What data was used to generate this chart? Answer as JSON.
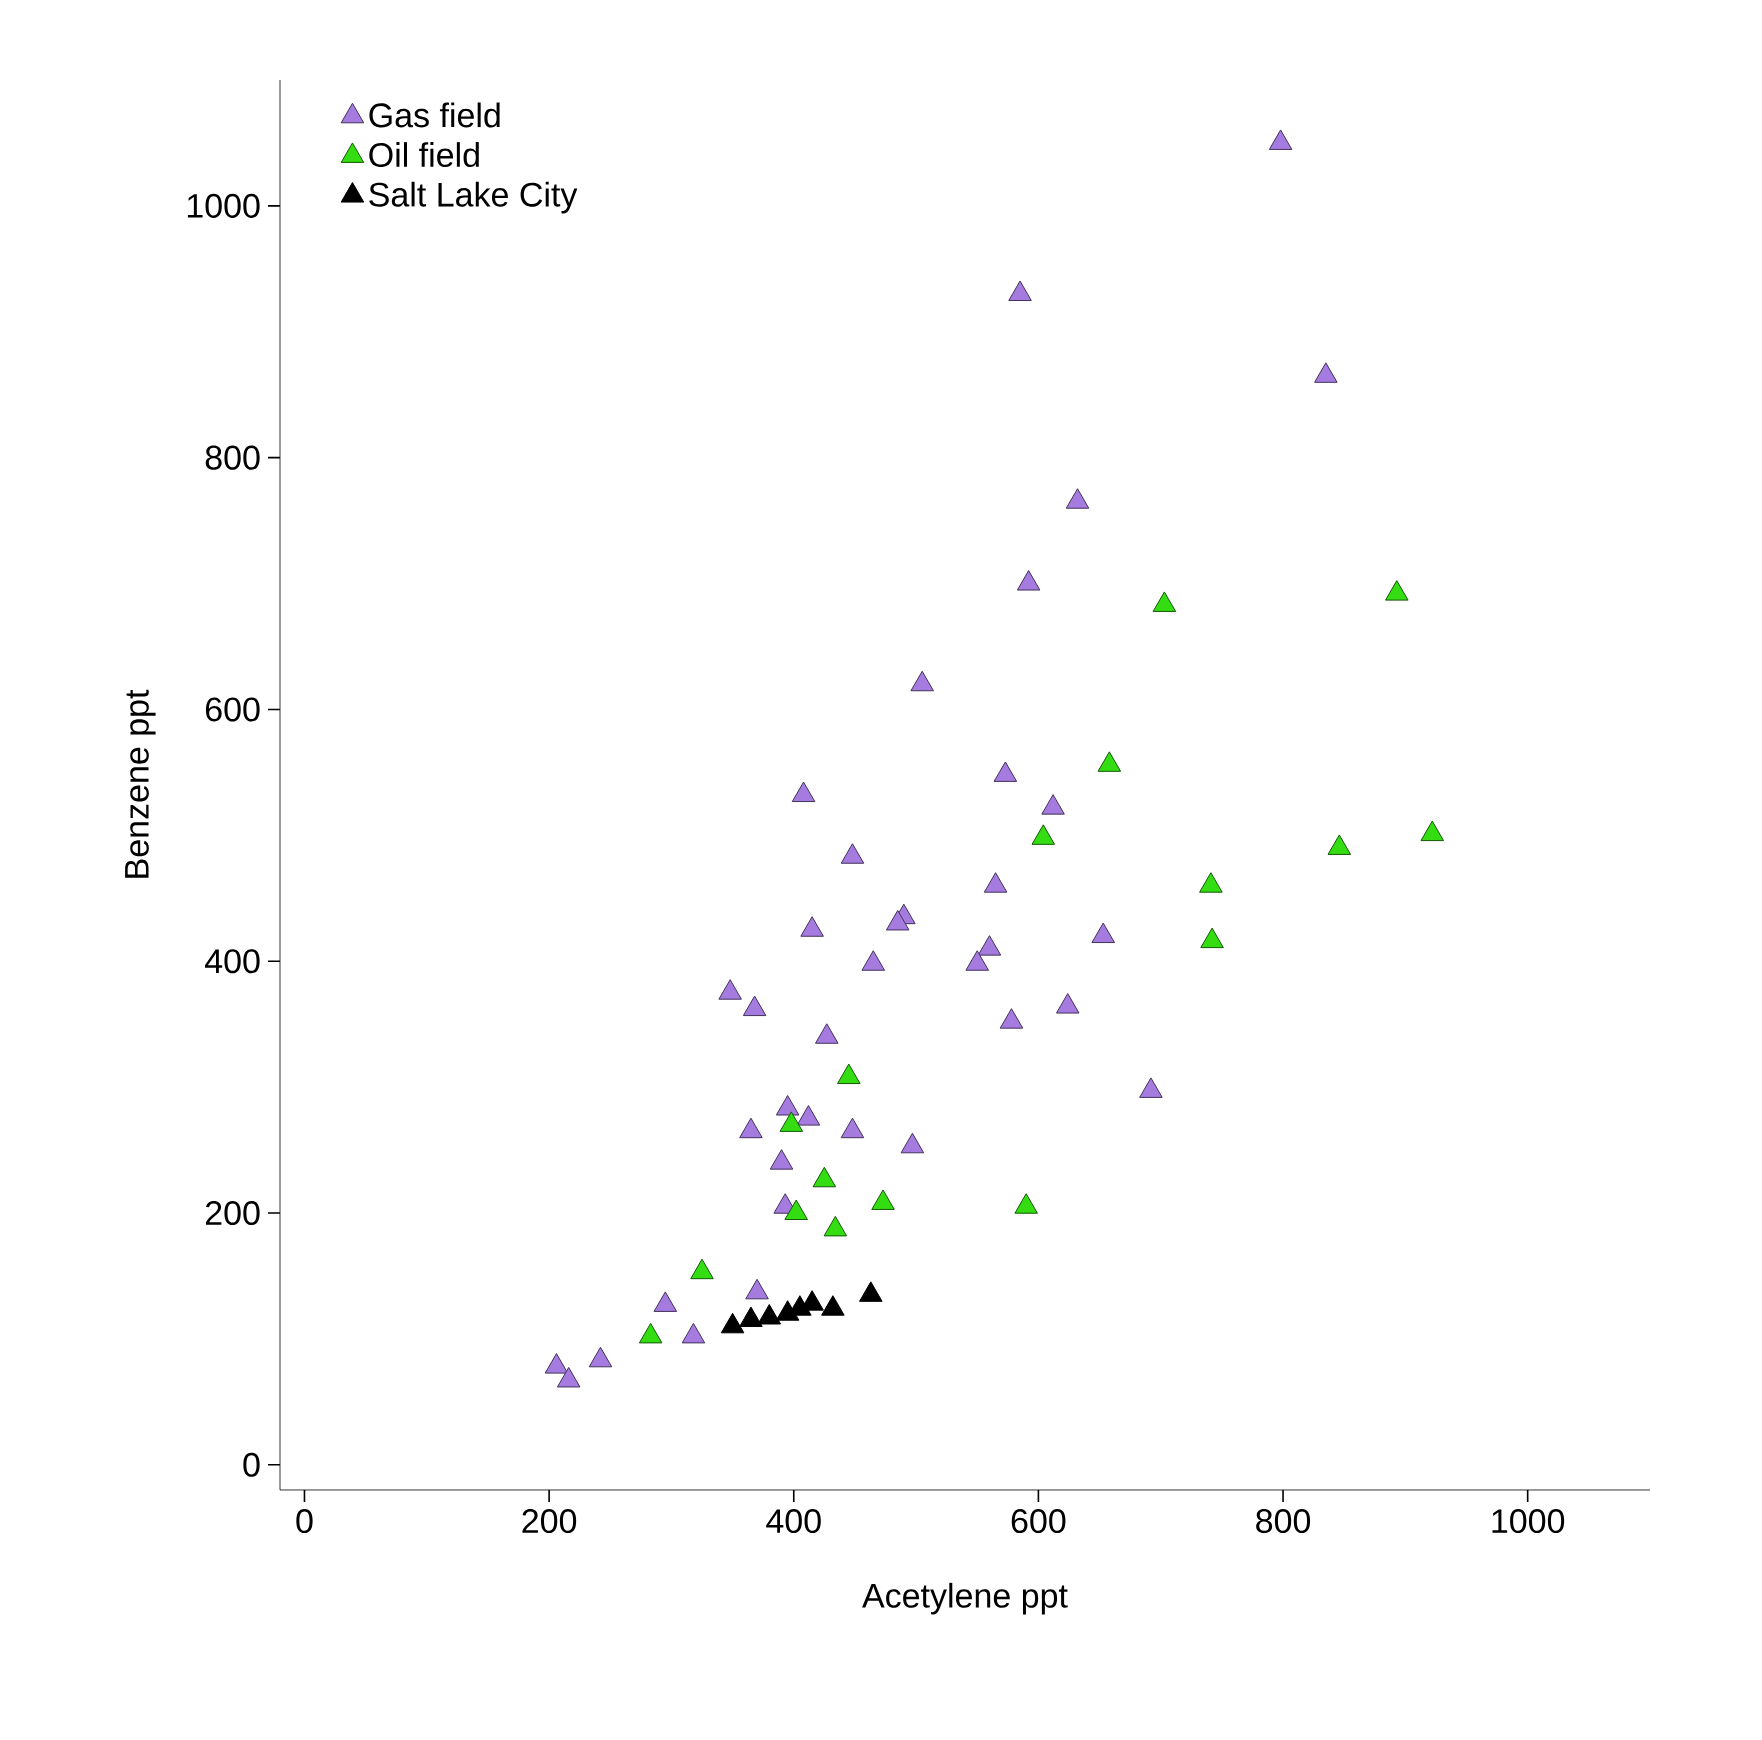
{
  "chart_data": {
    "type": "scatter",
    "xlabel": "Acetylene ppt",
    "ylabel": "Benzene ppt",
    "xlim": [
      -20,
      1100
    ],
    "ylim": [
      -20,
      1100
    ],
    "xticks": [
      0,
      200,
      400,
      600,
      800,
      1000
    ],
    "yticks": [
      0,
      200,
      400,
      600,
      800,
      1000
    ],
    "grid": false,
    "legend": "top left",
    "marker": "triangle",
    "series": [
      {
        "name": "Gas field",
        "color": "#a67be0",
        "x": [
          798,
          585,
          835,
          632,
          592,
          505,
          408,
          573,
          612,
          448,
          565,
          415,
          490,
          485,
          560,
          550,
          653,
          465,
          348,
          368,
          578,
          624,
          427,
          692,
          395,
          412,
          365,
          448,
          497,
          390,
          393,
          370,
          295,
          242,
          206,
          216,
          318
        ],
        "values": [
          1050,
          930,
          865,
          765,
          700,
          620,
          532,
          548,
          522,
          483,
          460,
          425,
          435,
          430,
          410,
          398,
          420,
          398,
          375,
          362,
          352,
          364,
          340,
          297,
          283,
          275,
          265,
          265,
          253,
          240,
          205,
          137,
          127,
          83,
          78,
          67,
          102
        ]
      },
      {
        "name": "Oil field",
        "color": "#33dd11",
        "x": [
          703,
          893,
          658,
          604,
          846,
          922,
          741,
          742,
          445,
          398,
          425,
          402,
          473,
          434,
          590,
          325,
          283
        ],
        "values": [
          683,
          692,
          556,
          498,
          490,
          501,
          460,
          416,
          308,
          270,
          226,
          200,
          208,
          187,
          205,
          153,
          102
        ]
      },
      {
        "name": "Salt Lake City",
        "color": "#000000",
        "x": [
          350,
          365,
          380,
          395,
          405,
          415,
          432,
          463
        ],
        "values": [
          110,
          115,
          117,
          120,
          124,
          128,
          124,
          135
        ]
      }
    ]
  }
}
